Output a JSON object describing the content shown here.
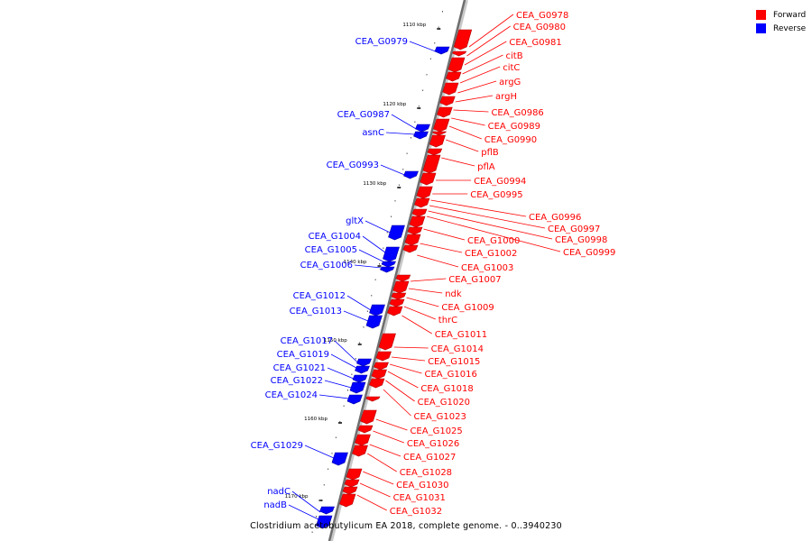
{
  "legend": {
    "forward_label": "Forward",
    "reverse_label": "Reverse",
    "forward_color": "#ff0000",
    "reverse_color": "#0000ff"
  },
  "footer": "Clostridium acetobutylicum EA 2018, complete genome. - 0..3940230",
  "ticks": [
    "1110 kbp",
    "1120 kbp",
    "1130 kbp",
    "1140 kbp",
    "1150 kbp",
    "1160 kbp",
    "1170 kbp"
  ],
  "forward_genes": [
    "CEA_G0978",
    "CEA_G0980",
    "CEA_G0981",
    "citB",
    "citC",
    "argG",
    "argH",
    "CEA_G0986",
    "CEA_G0989",
    "CEA_G0990",
    "pflB",
    "pflA",
    "CEA_G0994",
    "CEA_G0995",
    "CEA_G0996",
    "CEA_G0997",
    "CEA_G0998",
    "CEA_G0999",
    "CEA_G1000",
    "CEA_G1002",
    "CEA_G1003",
    "CEA_G1007",
    "ndk",
    "CEA_G1009",
    "thrC",
    "CEA_G1011",
    "CEA_G1014",
    "CEA_G1015",
    "CEA_G1016",
    "CEA_G1018",
    "CEA_G1020",
    "CEA_G1023",
    "CEA_G1025",
    "CEA_G1026",
    "CEA_G1027",
    "CEA_G1028",
    "CEA_G1030",
    "CEA_G1031",
    "CEA_G1032"
  ],
  "reverse_genes": [
    "CEA_G0979",
    "CEA_G0987",
    "asnC",
    "CEA_G0993",
    "gltX",
    "CEA_G1004",
    "CEA_G1005",
    "CEA_G1006",
    "CEA_G1012",
    "CEA_G1013",
    "CEA_G1017",
    "CEA_G1019",
    "CEA_G1021",
    "CEA_G1022",
    "CEA_G1024",
    "CEA_G1029",
    "nadC",
    "nadB"
  ]
}
